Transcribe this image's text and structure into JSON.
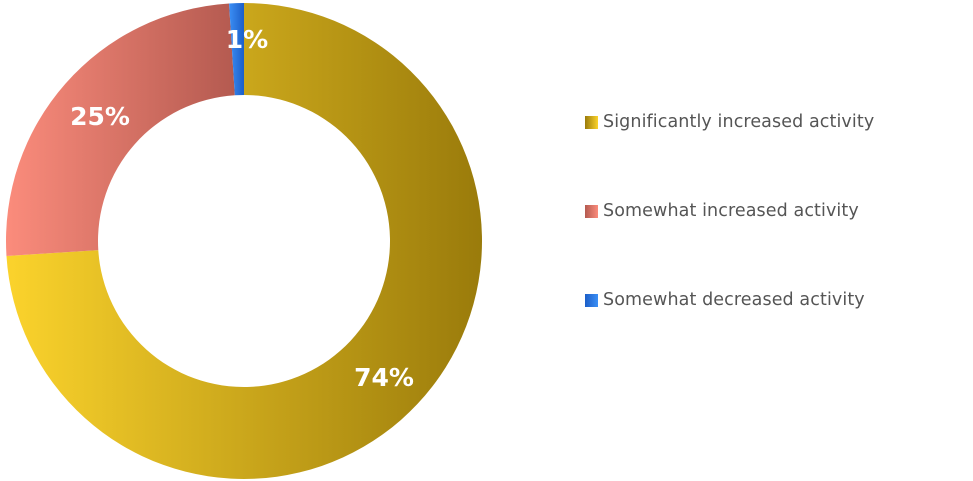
{
  "chart_data": {
    "type": "pie",
    "donut": true,
    "title": "",
    "legend_position": "right",
    "categories": [
      "Significantly increased activity",
      "Somewhat increased activity",
      "Somewhat decreased activity"
    ],
    "values": [
      74,
      25,
      1
    ],
    "data_labels": [
      "74%",
      "25%",
      "1%"
    ],
    "colors": {
      "Significantly increased activity": {
        "dark": "#9a7b0b",
        "light": "#fbd32c"
      },
      "Somewhat increased activity": {
        "dark": "#b45a50",
        "light": "#fb8c7c"
      },
      "Somewhat decreased activity": {
        "dark": "#1c5ec8",
        "light": "#3b8ff5"
      }
    }
  }
}
